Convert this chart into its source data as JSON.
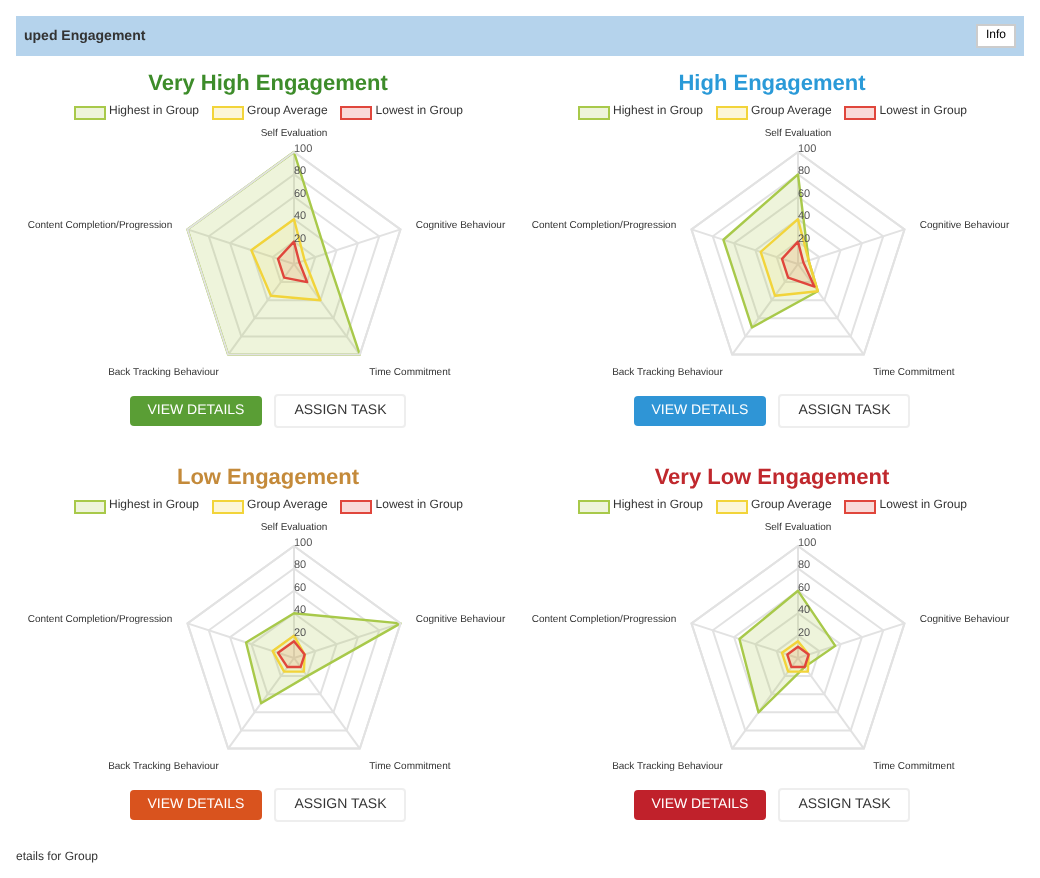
{
  "chart_data": [
    {
      "type": "radar",
      "title": "Very High Engagement",
      "categories": [
        "Self Evaluation",
        "Cognitive Behaviour",
        "Time Commitment",
        "Back Tracking Behaviour",
        "Content Completion/Progression"
      ],
      "ylim": [
        0,
        100
      ],
      "yticks": [
        20,
        40,
        60,
        80,
        100
      ],
      "grid": true,
      "legend": "top",
      "series": [
        {
          "name": "Highest in Group",
          "color": "#a8c94a",
          "values": [
            100,
            30,
            100,
            100,
            100
          ]
        },
        {
          "name": "Group Average",
          "color": "#f2d43a",
          "values": [
            40,
            10,
            40,
            35,
            40
          ]
        },
        {
          "name": "Lowest in Group",
          "color": "#e0463c",
          "values": [
            20,
            5,
            20,
            15,
            15
          ]
        }
      ],
      "annotations": [
        "VIEW DETAILS",
        "ASSIGN TASK",
        "uped Engagement",
        "Info"
      ]
    },
    {
      "type": "radar",
      "title": "High Engagement",
      "categories": [
        "Self Evaluation",
        "Cognitive Behaviour",
        "Time Commitment",
        "Back Tracking Behaviour",
        "Content Completion/Progression"
      ],
      "ylim": [
        0,
        100
      ],
      "yticks": [
        20,
        40,
        60,
        80,
        100
      ],
      "grid": true,
      "legend": "top",
      "series": [
        {
          "name": "Highest in Group",
          "color": "#a8c94a",
          "values": [
            80,
            10,
            30,
            70,
            70
          ]
        },
        {
          "name": "Group Average",
          "color": "#f2d43a",
          "values": [
            40,
            10,
            30,
            35,
            35
          ]
        },
        {
          "name": "Lowest in Group",
          "color": "#e0463c",
          "values": [
            20,
            5,
            25,
            15,
            15
          ]
        }
      ],
      "annotations": [
        "VIEW DETAILS",
        "ASSIGN TASK"
      ]
    },
    {
      "type": "radar",
      "title": "Low Engagement",
      "categories": [
        "Self Evaluation",
        "Cognitive Behaviour",
        "Time Commitment",
        "Back Tracking Behaviour",
        "Content Completion/Progression"
      ],
      "ylim": [
        0,
        100
      ],
      "yticks": [
        20,
        40,
        60,
        80,
        100
      ],
      "grid": true,
      "legend": "top",
      "series": [
        {
          "name": "Highest in Group",
          "color": "#a8c94a",
          "values": [
            40,
            100,
            20,
            50,
            45
          ]
        },
        {
          "name": "Group Average",
          "color": "#f2d43a",
          "values": [
            20,
            10,
            15,
            15,
            20
          ]
        },
        {
          "name": "Lowest in Group",
          "color": "#e0463c",
          "values": [
            15,
            10,
            10,
            10,
            15
          ]
        }
      ],
      "annotations": [
        "VIEW DETAILS",
        "ASSIGN TASK"
      ]
    },
    {
      "type": "radar",
      "title": "Very Low Engagement",
      "categories": [
        "Self Evaluation",
        "Cognitive Behaviour",
        "Time Commitment",
        "Back Tracking Behaviour",
        "Content Completion/Progression"
      ],
      "ylim": [
        0,
        100
      ],
      "yticks": [
        20,
        40,
        60,
        80,
        100
      ],
      "grid": true,
      "legend": "top",
      "series": [
        {
          "name": "Highest in Group",
          "color": "#a8c94a",
          "values": [
            60,
            35,
            10,
            60,
            55
          ]
        },
        {
          "name": "Group Average",
          "color": "#f2d43a",
          "values": [
            15,
            10,
            15,
            15,
            15
          ]
        },
        {
          "name": "Lowest in Group",
          "color": "#e0463c",
          "values": [
            10,
            10,
            10,
            10,
            10
          ]
        }
      ],
      "annotations": [
        "VIEW DETAILS",
        "ASSIGN TASK",
        "etails for Group"
      ]
    }
  ]
}
